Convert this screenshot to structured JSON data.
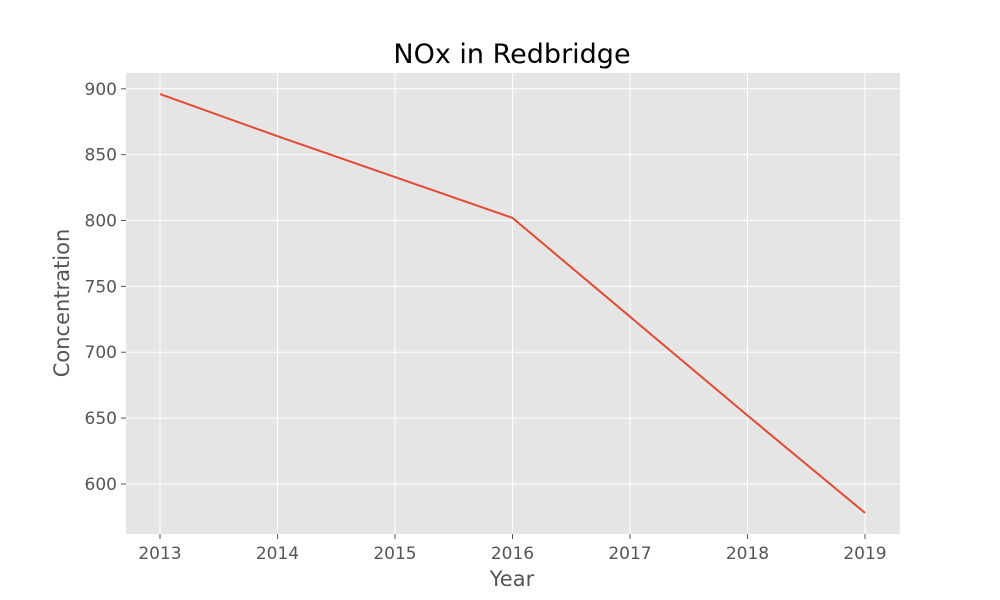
{
  "chart_data": {
    "type": "line",
    "title": "NOx in Redbridge",
    "xlabel": "Year",
    "ylabel": "Concentration",
    "x": [
      "2013",
      "2014",
      "2015",
      "2016",
      "2017",
      "2018",
      "2019"
    ],
    "series": [
      {
        "values": [
          896,
          864,
          833,
          802,
          727,
          652,
          578
        ],
        "color": "#e24a33"
      }
    ],
    "yticks": [
      600,
      650,
      700,
      750,
      800,
      850,
      900
    ],
    "ylim": [
      562,
      912
    ],
    "grid": true,
    "background_color": "#e5e5e5",
    "grid_color": "#ffffff"
  }
}
